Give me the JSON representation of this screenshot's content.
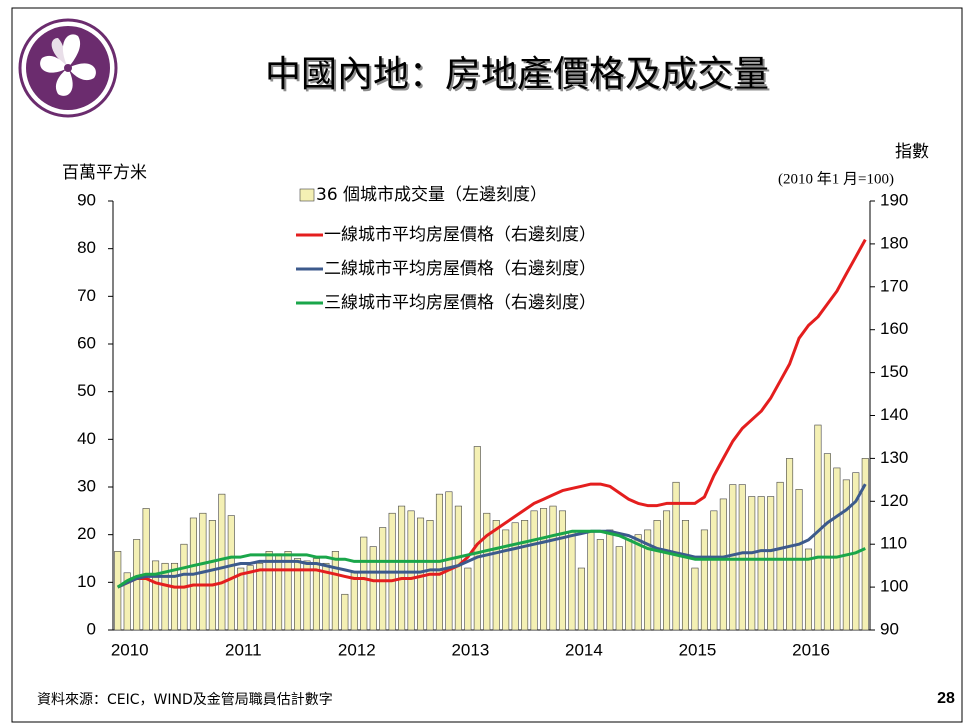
{
  "title": "中國內地：房地產價格及成交量",
  "source": "資料來源：CEIC，WIND及金管局職員估計數字",
  "page_number": "28",
  "chart_data": {
    "type": "bar",
    "ylabel": "百萬平方米",
    "y2label": "指數",
    "y2note": "(2010 年1 月=100)",
    "categories": [
      "2010",
      null,
      null,
      null,
      null,
      null,
      null,
      null,
      null,
      null,
      null,
      null,
      "2011",
      null,
      null,
      null,
      null,
      null,
      null,
      null,
      null,
      null,
      null,
      null,
      "2012",
      null,
      null,
      null,
      null,
      null,
      null,
      null,
      null,
      null,
      null,
      null,
      "2013",
      null,
      null,
      null,
      null,
      null,
      null,
      null,
      null,
      null,
      null,
      null,
      "2014",
      null,
      null,
      null,
      null,
      null,
      null,
      null,
      null,
      null,
      null,
      null,
      "2015",
      null,
      null,
      null,
      null,
      null,
      null,
      null,
      null,
      null,
      null,
      null,
      "2016",
      null,
      null,
      null,
      null,
      null,
      null,
      null
    ],
    "ylim": [
      0,
      90
    ],
    "yticks": [
      0,
      10,
      20,
      30,
      40,
      50,
      60,
      70,
      80,
      90
    ],
    "y2lim": [
      90,
      190
    ],
    "y2ticks": [
      90,
      100,
      110,
      120,
      130,
      140,
      150,
      160,
      170,
      180,
      190
    ],
    "series": [
      {
        "name": "36 個城市成交量（左邊刻度）",
        "type": "bar",
        "color": "#f4f0b4",
        "values": [
          16.5,
          12,
          19,
          25.5,
          14.5,
          14,
          14,
          18,
          23.5,
          24.5,
          23,
          28.5,
          24,
          13,
          13.5,
          14,
          16.5,
          16,
          16.5,
          15,
          14.5,
          15,
          14,
          16.5,
          7.5,
          12,
          19.5,
          17.5,
          21.5,
          24.5,
          26,
          25,
          23.5,
          23,
          28.5,
          29,
          26,
          13,
          38.5,
          24.5,
          23,
          21,
          22.5,
          23,
          25,
          25.5,
          26,
          25,
          20.5,
          13,
          20.5,
          19,
          21,
          17.5,
          19,
          20,
          21,
          23,
          25,
          31,
          23,
          13,
          21,
          25,
          27.5,
          30.5,
          30.5,
          28,
          28,
          28,
          31,
          36,
          29.5,
          17,
          43,
          37,
          34,
          31.5,
          33,
          36
        ]
      },
      {
        "name": "一線城市平均房屋價格（右邊刻度）",
        "type": "line",
        "axis": "y2",
        "color": "#e41e1e",
        "values": [
          100,
          101,
          102,
          102,
          101,
          100.5,
          100,
          100,
          100.5,
          100.5,
          100.5,
          101,
          102,
          103,
          103.5,
          104,
          104,
          104,
          104,
          104,
          104,
          104,
          103.5,
          103,
          102.5,
          102,
          102,
          101.5,
          101.5,
          101.5,
          102,
          102,
          102.5,
          103,
          103,
          104,
          105,
          107,
          110,
          112,
          113.5,
          115,
          116.5,
          118,
          119.5,
          120.5,
          121.5,
          122.5,
          123,
          123.5,
          124,
          124,
          123.5,
          122,
          120.5,
          119.5,
          119,
          119,
          119.5,
          119.5,
          119.5,
          119.5,
          121,
          126,
          130,
          134,
          137,
          139,
          141,
          144,
          148,
          152,
          158,
          161,
          163,
          166,
          169,
          173,
          177,
          181
        ]
      },
      {
        "name": "二線城市平均房屋價格（右邊刻度）",
        "type": "line",
        "axis": "y2",
        "color": "#3c5a8c",
        "values": [
          100,
          101,
          102,
          102.5,
          102.5,
          102.5,
          102.5,
          103,
          103,
          103.5,
          104,
          104.5,
          105,
          105.5,
          105.5,
          106,
          106,
          106,
          106,
          106,
          105.5,
          105.5,
          105,
          104.5,
          104,
          103.5,
          103.5,
          103.5,
          103.5,
          103.5,
          103.5,
          103.5,
          103.5,
          104,
          104,
          104.5,
          105,
          106,
          107,
          107.5,
          108,
          108.5,
          109,
          109.5,
          110,
          110.5,
          111,
          111.5,
          112,
          112.5,
          113,
          113,
          113,
          112.5,
          112,
          111,
          110,
          109,
          108.5,
          108,
          107.5,
          107,
          107,
          107,
          107,
          107.5,
          108,
          108,
          108.5,
          108.5,
          109,
          109.5,
          110,
          111,
          113,
          115,
          116.5,
          118,
          120,
          124
        ]
      },
      {
        "name": "三線城市平均房屋價格（右邊刻度）",
        "type": "line",
        "axis": "y2",
        "color": "#1aa64a",
        "values": [
          100,
          101.5,
          102.5,
          103,
          103,
          103.5,
          104,
          104.5,
          105,
          105.5,
          106,
          106.5,
          107,
          107,
          107.5,
          107.5,
          107.5,
          107.5,
          107.5,
          107.5,
          107.5,
          107,
          107,
          106.5,
          106.5,
          106,
          106,
          106,
          106,
          106,
          106,
          106,
          106,
          106,
          106,
          106.5,
          107,
          107.5,
          108,
          108.5,
          109,
          109.5,
          110,
          110.5,
          111,
          111.5,
          112,
          112.5,
          113,
          113,
          113,
          113,
          112.5,
          112,
          111,
          110,
          109,
          108.5,
          108,
          107.5,
          107,
          106.5,
          106.5,
          106.5,
          106.5,
          106.5,
          106.5,
          106.5,
          106.5,
          106.5,
          106.5,
          106.5,
          106.5,
          106.5,
          107,
          107,
          107,
          107.5,
          108,
          109
        ]
      }
    ]
  }
}
